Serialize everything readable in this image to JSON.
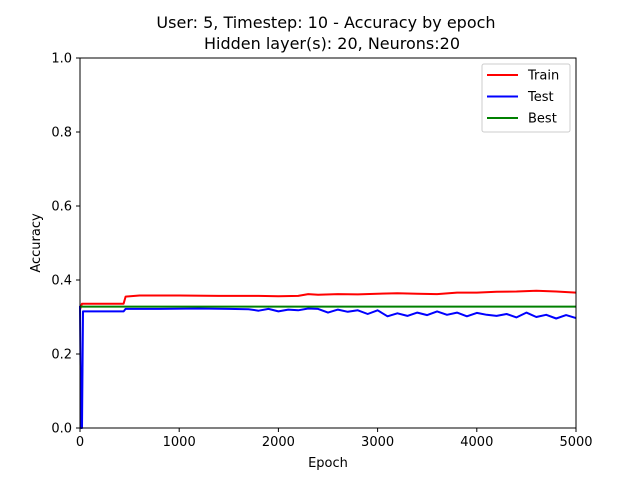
{
  "chart_data": {
    "type": "line",
    "title_line1": "User: 5, Timestep: 10 - Accuracy by epoch",
    "title_line2": "Hidden layer(s): 20, Neurons:20",
    "xlabel": "Epoch",
    "ylabel": "Accuracy",
    "xlim": [
      0,
      5000
    ],
    "ylim": [
      0,
      1.0
    ],
    "xticks": [
      0,
      1000,
      2000,
      3000,
      4000,
      5000
    ],
    "xtick_labels": [
      "0",
      "1000",
      "2000",
      "3000",
      "4000",
      "5000"
    ],
    "yticks": [
      0,
      0.2,
      0.4,
      0.6,
      0.8,
      1.0
    ],
    "ytick_labels": [
      "0.0",
      "0.2",
      "0.4",
      "0.6",
      "0.8",
      "1.0"
    ],
    "grid": false,
    "legend_position": "top-right",
    "series": [
      {
        "name": "Train",
        "color": "#ff0000",
        "x": [
          0,
          20,
          440,
          460,
          600,
          1000,
          1400,
          1800,
          2000,
          2200,
          2300,
          2400,
          2600,
          2800,
          3000,
          3200,
          3400,
          3600,
          3800,
          4000,
          4200,
          4400,
          4600,
          4800,
          5000
        ],
        "y": [
          0.32,
          0.336,
          0.336,
          0.355,
          0.358,
          0.358,
          0.357,
          0.357,
          0.356,
          0.357,
          0.362,
          0.36,
          0.362,
          0.361,
          0.363,
          0.364,
          0.363,
          0.362,
          0.366,
          0.366,
          0.368,
          0.369,
          0.371,
          0.369,
          0.366
        ]
      },
      {
        "name": "Test",
        "color": "#0000ff",
        "x": [
          0,
          10,
          20,
          30,
          440,
          460,
          800,
          1200,
          1500,
          1700,
          1800,
          1900,
          2000,
          2100,
          2200,
          2300,
          2400,
          2500,
          2600,
          2700,
          2800,
          2900,
          3000,
          3100,
          3200,
          3300,
          3400,
          3500,
          3600,
          3700,
          3800,
          3900,
          4000,
          4100,
          4200,
          4300,
          4400,
          4500,
          4600,
          4700,
          4800,
          4900,
          5000
        ],
        "y": [
          0.33,
          0.0,
          0.0,
          0.315,
          0.315,
          0.322,
          0.322,
          0.323,
          0.322,
          0.321,
          0.317,
          0.322,
          0.315,
          0.32,
          0.318,
          0.323,
          0.322,
          0.312,
          0.32,
          0.314,
          0.318,
          0.308,
          0.318,
          0.302,
          0.31,
          0.303,
          0.312,
          0.305,
          0.315,
          0.306,
          0.312,
          0.302,
          0.311,
          0.306,
          0.303,
          0.308,
          0.299,
          0.312,
          0.3,
          0.306,
          0.296,
          0.305,
          0.297
        ]
      },
      {
        "name": "Best",
        "color": "#008000",
        "x": [
          0,
          5000
        ],
        "y": [
          0.328,
          0.328
        ]
      }
    ]
  }
}
